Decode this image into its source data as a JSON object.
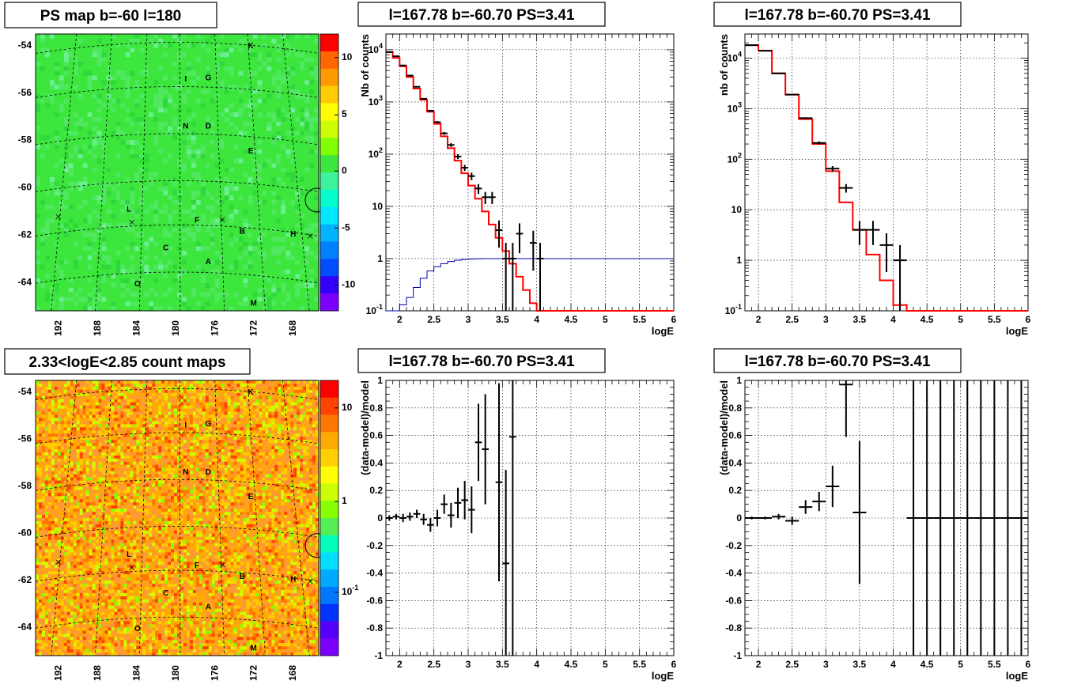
{
  "chart_data": [
    {
      "id": "psmap",
      "type": "heatmap",
      "title": "PS map b=-60 l=180",
      "x_ticks": [
        "192",
        "188",
        "184",
        "180",
        "176",
        "172",
        "168"
      ],
      "y_ticks": [
        "-54",
        "-56",
        "-58",
        "-60",
        "-62",
        "-64"
      ],
      "palette_ticks": [
        "10",
        "5",
        "0",
        "-5",
        "-10"
      ],
      "sources": [
        "K",
        "I",
        "G",
        "N",
        "D",
        "E",
        "L",
        "F",
        "B",
        "H",
        "C",
        "A",
        "O",
        "M"
      ],
      "scale": "linear",
      "ylim": [
        -65.3,
        -53.5
      ],
      "colors": {
        "background": "#3de63d",
        "marker_circle": "#000000"
      }
    },
    {
      "id": "countmap",
      "type": "heatmap",
      "title": "2.33<logE<2.85 count maps",
      "x_ticks": [
        "192",
        "188",
        "184",
        "180",
        "176",
        "172",
        "168"
      ],
      "y_ticks": [
        "-54",
        "-56",
        "-58",
        "-60",
        "-62",
        "-64"
      ],
      "palette_ticks": [
        "10",
        "1",
        "10^{-1}"
      ],
      "sources": [
        "K",
        "I",
        "G",
        "N",
        "D",
        "E",
        "L",
        "F",
        "B",
        "H",
        "C",
        "A",
        "O",
        "M"
      ],
      "scale": "log"
    },
    {
      "id": "spec1",
      "type": "line",
      "title": "l=167.78 b=-60.70 PS=3.41",
      "xlabel": "logE",
      "ylabel": "Nb of counts",
      "xlim": [
        1.8,
        6.0
      ],
      "ylim": [
        0.1,
        20000
      ],
      "yscale": "log",
      "grid": true,
      "x_ticks": [
        "2",
        "2.5",
        "3",
        "3.5",
        "4",
        "4.5",
        "5",
        "5.5",
        "6"
      ],
      "y_ticks": [
        "10^{-1}",
        "1",
        "10",
        "10^{2}",
        "10^{3}",
        "10^{4}"
      ],
      "model": {
        "edges": [
          1.8,
          1.9,
          2.0,
          2.1,
          2.2,
          2.3,
          2.4,
          2.5,
          2.6,
          2.7,
          2.8,
          2.9,
          3.0,
          3.1,
          3.2,
          3.3,
          3.4,
          3.5,
          3.6,
          3.7,
          3.8,
          3.9,
          4.0,
          4.1,
          6.0
        ],
        "values": [
          9000,
          7000,
          4800,
          3000,
          1800,
          1100,
          650,
          380,
          220,
          130,
          75,
          43,
          25,
          14,
          8,
          4.5,
          2.5,
          1.4,
          0.8,
          0.45,
          0.25,
          0.14,
          0.1,
          0.1
        ]
      },
      "efficiency": {
        "edges": [
          1.8,
          1.9,
          2.0,
          2.1,
          2.2,
          2.3,
          2.4,
          2.5,
          2.6,
          2.7,
          2.8,
          2.9,
          3.0,
          3.1,
          3.2,
          3.3,
          3.4,
          6.0
        ],
        "values": [
          0.1,
          0.1,
          0.13,
          0.18,
          0.28,
          0.42,
          0.58,
          0.7,
          0.8,
          0.88,
          0.93,
          0.96,
          0.98,
          0.99,
          1.0,
          1.0,
          1.0
        ]
      },
      "data": [
        {
          "x": 1.85,
          "y": 9000
        },
        {
          "x": 1.95,
          "y": 7500
        },
        {
          "x": 2.05,
          "y": 5000
        },
        {
          "x": 2.15,
          "y": 3200
        },
        {
          "x": 2.25,
          "y": 1950
        },
        {
          "x": 2.35,
          "y": 1150
        },
        {
          "x": 2.45,
          "y": 680
        },
        {
          "x": 2.55,
          "y": 410
        },
        {
          "x": 2.65,
          "y": 250
        },
        {
          "x": 2.75,
          "y": 150
        },
        {
          "x": 2.85,
          "y": 90
        },
        {
          "x": 2.95,
          "y": 55
        },
        {
          "x": 3.05,
          "y": 38
        },
        {
          "x": 3.15,
          "y": 22
        },
        {
          "x": 3.25,
          "y": 15
        },
        {
          "x": 3.35,
          "y": 15
        },
        {
          "x": 3.45,
          "y": 3.5
        },
        {
          "x": 3.55,
          "y": 1
        },
        {
          "x": 3.65,
          "y": 1
        },
        {
          "x": 3.75,
          "y": 3
        },
        {
          "x": 3.95,
          "y": 2
        },
        {
          "x": 4.05,
          "y": 1
        }
      ],
      "colors": {
        "data": "#000000",
        "model": "#ff0000",
        "efficiency": "#0000aa"
      }
    },
    {
      "id": "spec2",
      "type": "line",
      "title": "l=167.78 b=-60.70 PS=3.41",
      "xlabel": "logE",
      "ylabel": "nb of counts",
      "xlim": [
        1.8,
        6.0
      ],
      "ylim": [
        0.1,
        30000
      ],
      "yscale": "log",
      "grid": true,
      "x_ticks": [
        "2",
        "2.5",
        "3",
        "3.5",
        "4",
        "4.5",
        "5",
        "5.5",
        "6"
      ],
      "y_ticks": [
        "10^{-1}",
        "1",
        "10",
        "10^{2}",
        "10^{3}",
        "10^{4}"
      ],
      "model": {
        "edges": [
          1.8,
          2.0,
          2.2,
          2.4,
          2.6,
          2.8,
          3.0,
          3.2,
          3.4,
          3.6,
          3.8,
          4.0,
          4.2,
          6.0
        ],
        "values": [
          18000,
          14000,
          5000,
          1900,
          620,
          200,
          58,
          14,
          4,
          1.3,
          0.4,
          0.13,
          0.1
        ]
      },
      "data": [
        {
          "x": 1.9,
          "y": 18000
        },
        {
          "x": 2.1,
          "y": 14000
        },
        {
          "x": 2.3,
          "y": 5000
        },
        {
          "x": 2.5,
          "y": 1900
        },
        {
          "x": 2.7,
          "y": 650
        },
        {
          "x": 2.9,
          "y": 210
        },
        {
          "x": 3.1,
          "y": 65
        },
        {
          "x": 3.3,
          "y": 27
        },
        {
          "x": 3.5,
          "y": 4
        },
        {
          "x": 3.7,
          "y": 4
        },
        {
          "x": 3.9,
          "y": 2
        },
        {
          "x": 4.1,
          "y": 1
        }
      ],
      "colors": {
        "data": "#000000",
        "model": "#ff0000"
      }
    },
    {
      "id": "res1",
      "type": "scatter",
      "title": "l=167.78 b=-60.70 PS=3.41",
      "xlabel": "logE",
      "ylabel": "(data-model)/model",
      "xlim": [
        1.8,
        6.0
      ],
      "ylim": [
        -1,
        1
      ],
      "grid": true,
      "x_ticks": [
        "2",
        "2.5",
        "3",
        "3.5",
        "4",
        "4.5",
        "5",
        "5.5",
        "6"
      ],
      "y_ticks": [
        "1",
        "0.8",
        "0.6",
        "0.4",
        "0.2",
        "0",
        "-0.2",
        "-0.4",
        "-0.6",
        "-0.8",
        "-1"
      ],
      "data": [
        {
          "x": 1.85,
          "y": 0.0,
          "e": 0.02
        },
        {
          "x": 1.95,
          "y": 0.01,
          "e": 0.02
        },
        {
          "x": 2.05,
          "y": 0.0,
          "e": 0.03
        },
        {
          "x": 2.15,
          "y": 0.01,
          "e": 0.03
        },
        {
          "x": 2.25,
          "y": 0.03,
          "e": 0.03
        },
        {
          "x": 2.35,
          "y": -0.01,
          "e": 0.04
        },
        {
          "x": 2.45,
          "y": -0.05,
          "e": 0.05
        },
        {
          "x": 2.55,
          "y": 0.0,
          "e": 0.06
        },
        {
          "x": 2.65,
          "y": 0.1,
          "e": 0.07
        },
        {
          "x": 2.75,
          "y": 0.02,
          "e": 0.09
        },
        {
          "x": 2.85,
          "y": 0.11,
          "e": 0.11
        },
        {
          "x": 2.95,
          "y": 0.13,
          "e": 0.14
        },
        {
          "x": 3.05,
          "y": 0.06,
          "e": 0.17
        },
        {
          "x": 3.15,
          "y": 0.55,
          "e": 0.28
        },
        {
          "x": 3.25,
          "y": 0.5,
          "e": 0.4
        },
        {
          "x": 3.45,
          "y": 0.26,
          "e": 0.72
        },
        {
          "x": 3.55,
          "y": -0.33,
          "e": 0.68
        },
        {
          "x": 3.65,
          "y": 0.59,
          "e": 1.6
        }
      ],
      "colors": {
        "data": "#000000"
      }
    },
    {
      "id": "res2",
      "type": "scatter",
      "title": "l=167.78 b=-60.70 PS=3.41",
      "xlabel": "logE",
      "ylabel": "(data-model)/model",
      "xlim": [
        1.8,
        6.0
      ],
      "ylim": [
        -1,
        1
      ],
      "grid": true,
      "x_ticks": [
        "2",
        "2.5",
        "3",
        "3.5",
        "4",
        "4.5",
        "5",
        "5.5",
        "6"
      ],
      "y_ticks": [
        "1",
        "0.8",
        "0.6",
        "0.4",
        "0.2",
        "0",
        "-0.2",
        "-0.4",
        "-0.6",
        "-0.8",
        "-1"
      ],
      "data": [
        {
          "x": 1.9,
          "y": 0.0,
          "e": 0.01
        },
        {
          "x": 2.1,
          "y": 0.0,
          "e": 0.01
        },
        {
          "x": 2.3,
          "y": 0.01,
          "e": 0.02
        },
        {
          "x": 2.5,
          "y": -0.02,
          "e": 0.03
        },
        {
          "x": 2.7,
          "y": 0.08,
          "e": 0.05
        },
        {
          "x": 2.9,
          "y": 0.12,
          "e": 0.07
        },
        {
          "x": 3.1,
          "y": 0.23,
          "e": 0.15
        },
        {
          "x": 3.3,
          "y": 0.97,
          "e": 0.38
        },
        {
          "x": 3.5,
          "y": 0.04,
          "e": 0.52
        },
        {
          "x": 4.3,
          "y": 0.0,
          "e": 5
        },
        {
          "x": 4.5,
          "y": 0.0,
          "e": 5
        },
        {
          "x": 4.7,
          "y": 0.0,
          "e": 5
        },
        {
          "x": 4.9,
          "y": 0.0,
          "e": 5
        },
        {
          "x": 5.1,
          "y": 0.0,
          "e": 5
        },
        {
          "x": 5.3,
          "y": 0.0,
          "e": 5
        },
        {
          "x": 5.5,
          "y": 0.0,
          "e": 5
        },
        {
          "x": 5.7,
          "y": 0.0,
          "e": 5
        },
        {
          "x": 5.9,
          "y": 0.0,
          "e": 5
        }
      ],
      "colors": {
        "data": "#000000"
      }
    }
  ]
}
